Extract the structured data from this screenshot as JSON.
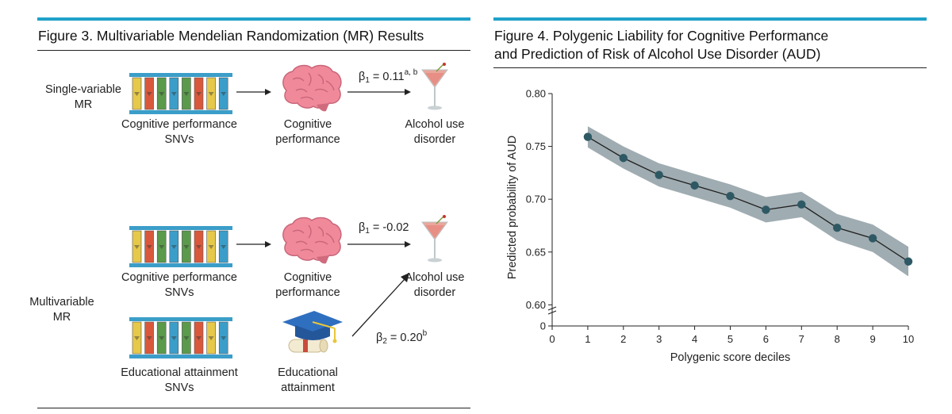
{
  "figure3": {
    "title": "Figure 3. Multivariable Mendelian Randomization (MR) Results",
    "single": {
      "row_label_lines": [
        "Single-variable",
        "MR"
      ],
      "snv_label_lines": [
        "Cognitive performance",
        "SNVs"
      ],
      "exposure_label_lines": [
        "Cognitive",
        "performance"
      ],
      "outcome_label_lines": [
        "Alcohol use",
        "disorder"
      ],
      "beta": {
        "symbol": "β",
        "sub": "1",
        "value": " = 0.11",
        "sup": "a, b"
      }
    },
    "multi": {
      "row_label_lines": [
        "Multivariable",
        "MR"
      ],
      "snv1_label_lines": [
        "Cognitive performance",
        "SNVs"
      ],
      "exposure1_label_lines": [
        "Cognitive",
        "performance"
      ],
      "outcome_label_lines": [
        "Alcohol use",
        "disorder"
      ],
      "beta1": {
        "symbol": "β",
        "sub": "1",
        "value": " = -0.02",
        "sup": ""
      },
      "snv2_label_lines": [
        "Educational attainment",
        "SNVs"
      ],
      "exposure2_label_lines": [
        "Educational",
        "attainment"
      ],
      "beta2": {
        "symbol": "β",
        "sub": "2",
        "value": " = 0.20",
        "sup": "b"
      }
    },
    "colors": {
      "accent": "#1fa1c9",
      "dna_blue": "#3b9ec9",
      "dna_yellow": "#e6c84a",
      "dna_red": "#d9583c",
      "dna_green": "#5a9a4a",
      "brain": "#f08a9a"
    }
  },
  "figure4": {
    "title_lines": [
      "Figure 4. Polygenic Liability for Cognitive Performance",
      "and Prediction of Risk of Alcohol Use Disorder (AUD)"
    ],
    "chart_data": {
      "type": "line",
      "title": "Figure 4. Polygenic Liability for Cognitive Performance and Prediction of Risk of Alcohol Use Disorder (AUD)",
      "xlabel": "Polygenic score deciles",
      "ylabel": "Predicted probability of AUD",
      "x": [
        1,
        2,
        3,
        4,
        5,
        6,
        7,
        8,
        9,
        10
      ],
      "series": [
        {
          "name": "Predicted probability",
          "values": [
            0.759,
            0.739,
            0.723,
            0.713,
            0.703,
            0.69,
            0.695,
            0.673,
            0.663,
            0.641
          ],
          "ci_lower": [
            0.749,
            0.729,
            0.712,
            0.702,
            0.692,
            0.678,
            0.683,
            0.661,
            0.65,
            0.627
          ],
          "ci_upper": [
            0.769,
            0.75,
            0.734,
            0.724,
            0.714,
            0.702,
            0.707,
            0.686,
            0.676,
            0.655
          ]
        }
      ],
      "xticks": [
        "0",
        "1",
        "2",
        "3",
        "4",
        "5",
        "6",
        "7",
        "8",
        "9",
        "10"
      ],
      "yticks": [
        "0",
        "0.60",
        "0.65",
        "0.70",
        "0.75",
        "0.80"
      ],
      "xlim": [
        0,
        10
      ],
      "ylim_display": [
        0.58,
        0.8
      ],
      "axis_break": true,
      "grid": false,
      "colors": {
        "line": "#1f1f1f",
        "marker": "#2e5964",
        "band": "#8e9ea3"
      }
    }
  }
}
